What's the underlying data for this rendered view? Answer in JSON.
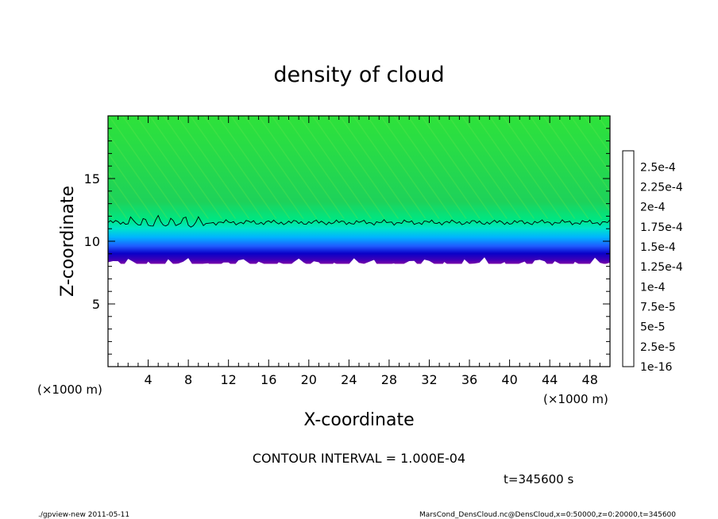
{
  "chart_data": {
    "type": "heatmap",
    "title": "density of cloud",
    "xlabel": "X-coordinate",
    "ylabel": "Z-coordinate",
    "x_unit": "(×1000 m)",
    "z_unit": "(×1000 m)",
    "xlim": [
      0,
      50
    ],
    "ylim": [
      0,
      20
    ],
    "x_ticks": [
      4,
      8,
      12,
      16,
      20,
      24,
      28,
      32,
      36,
      40,
      44,
      48
    ],
    "y_ticks": [
      5,
      10,
      15
    ],
    "colorbar": {
      "levels": [
        "1e-16",
        "2.5e-5",
        "5e-5",
        "7.5e-5",
        "1e-4",
        "1.25e-4",
        "1.5e-4",
        "1.75e-4",
        "2e-4",
        "2.25e-4",
        "2.5e-4"
      ],
      "colors": [
        "#7a00a8",
        "#0a00c8",
        "#1f5cff",
        "#00c8ff",
        "#00e682",
        "#1ed25a",
        "#6ee61e",
        "#d2f500",
        "#ffc800",
        "#ff5a00",
        "#ff3c3c",
        "#ff9b9b"
      ]
    },
    "profile": {
      "z": [
        8.2,
        9.0,
        9.8,
        10.8,
        11.5,
        20.0
      ],
      "value_range_note": ""
    },
    "contour_level": 0.0001,
    "contour_z": 11.5,
    "cloud_base_z": 8.2
  },
  "annotations": {
    "contour_interval": "CONTOUR INTERVAL = 1.000E-04",
    "time": "t=345600 s",
    "footer_left": "./gpview-new  2011-05-11",
    "footer_right": "MarsCond_DensCloud.nc@DensCloud,x=0:50000,z=0:20000,t=345600"
  }
}
